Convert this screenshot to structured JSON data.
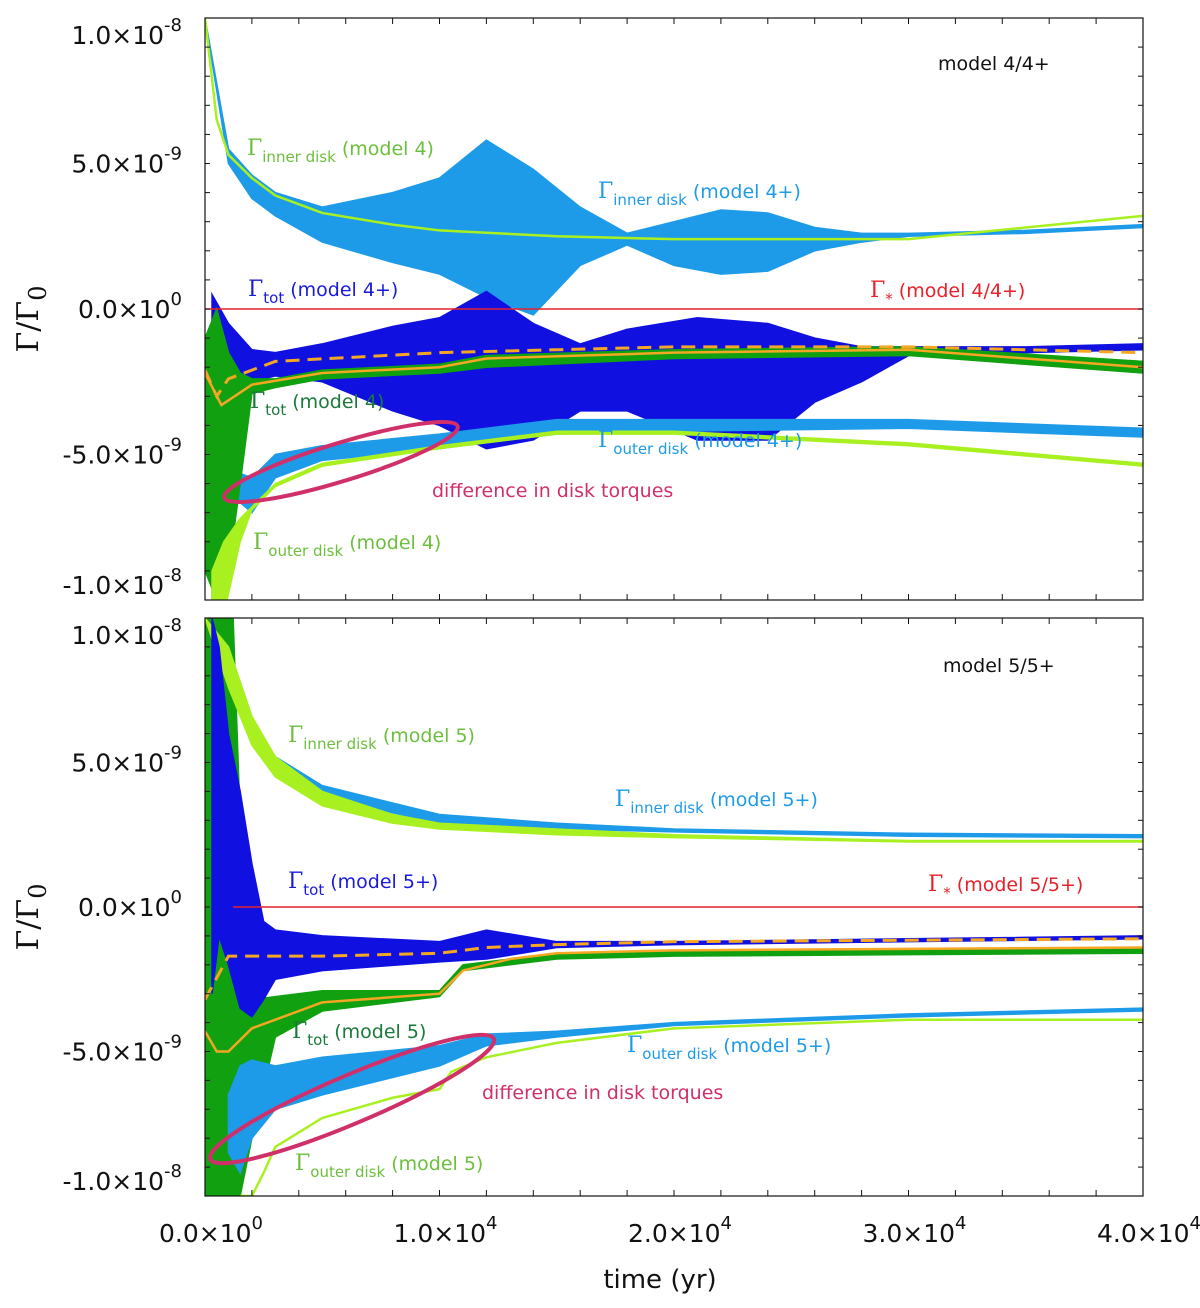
{
  "chart_data": [
    {
      "type": "line",
      "title": "model 4/4+",
      "xlabel": "time (yr)",
      "ylabel": {
        "main": "Γ/Γ",
        "sub": "0"
      },
      "xlim": [
        0,
        40000
      ],
      "ylim": [
        -1e-08,
        1e-08
      ],
      "y_scale_note": "values in units of 1e-9",
      "x_ticks": [
        {
          "m": "0.0×10",
          "e": "0",
          "v": 0
        },
        {
          "m": "1.0×10",
          "e": "4",
          "v": 10000
        },
        {
          "m": "2.0×10",
          "e": "4",
          "v": 20000
        },
        {
          "m": "3.0×10",
          "e": "4",
          "v": 30000
        },
        {
          "m": "4.0×10",
          "e": "4",
          "v": 40000
        }
      ],
      "y_ticks": [
        {
          "m": "1.0×10",
          "e": "-8",
          "v": 10
        },
        {
          "m": "5.0×10",
          "e": "-9",
          "v": 5
        },
        {
          "m": "0.0×10",
          "e": "0",
          "v": 0
        },
        {
          "m": "-5.0×10",
          "e": "-9",
          "v": -5
        },
        {
          "m": "-1.0×10",
          "e": "-8",
          "v": -10
        }
      ],
      "series": [
        {
          "name": "inner disk (model 4+)",
          "kind": "band",
          "color": "#1e9be8",
          "x": [
            0,
            1000,
            2000,
            3000,
            5000,
            8000,
            10000,
            12000,
            14000,
            16000,
            18000,
            20000,
            22000,
            24000,
            26000,
            28000,
            30000,
            35000,
            40000
          ],
          "upper": [
            10,
            5.5,
            4.6,
            4.0,
            3.5,
            4.0,
            4.5,
            5.8,
            4.8,
            3.5,
            2.6,
            3.0,
            3.4,
            3.3,
            2.8,
            2.6,
            2.6,
            2.7,
            2.9
          ],
          "lower": [
            10,
            5.0,
            3.8,
            3.2,
            2.3,
            1.6,
            1.2,
            0.4,
            -0.2,
            1.5,
            2.2,
            1.5,
            1.2,
            1.3,
            2.0,
            2.3,
            2.5,
            2.6,
            2.8
          ]
        },
        {
          "name": "tot (model 4+)",
          "kind": "band",
          "color": "#1010e0",
          "x": [
            300,
            1000,
            2000,
            3000,
            5000,
            8000,
            10000,
            12000,
            14000,
            16000,
            18000,
            21000,
            24000,
            26000,
            28000,
            30000,
            35000,
            40000
          ],
          "upper": [
            0.5,
            -0.5,
            -1.4,
            -1.5,
            -1.2,
            -0.6,
            -0.3,
            0.6,
            -0.5,
            -1.2,
            -0.7,
            -0.3,
            -0.5,
            -1.0,
            -1.3,
            -1.3,
            -1.3,
            -1.2
          ],
          "lower": [
            -3.0,
            -3.2,
            -2.5,
            -2.3,
            -2.5,
            -3.5,
            -4.0,
            -4.8,
            -4.5,
            -3.5,
            -3.5,
            -4.5,
            -4.5,
            -3.2,
            -2.5,
            -1.6,
            -1.5,
            -1.4
          ]
        },
        {
          "name": "outer disk (model 4+)",
          "kind": "band",
          "color": "#1e9be8",
          "x": [
            300,
            1000,
            2000,
            3000,
            5000,
            10000,
            15000,
            20000,
            30000,
            40000
          ],
          "upper": [
            -8,
            -5.5,
            -5.8,
            -5.0,
            -4.7,
            -4.3,
            -3.8,
            -3.8,
            -3.8,
            -4.1
          ],
          "lower": [
            -10,
            -6.3,
            -7.0,
            -5.8,
            -5.2,
            -4.8,
            -4.3,
            -4.2,
            -4.1,
            -4.4
          ]
        },
        {
          "name": "tot (model 4)",
          "kind": "band",
          "color": "#10a010",
          "x": [
            0,
            500,
            1000,
            1500,
            2000,
            3000,
            5000,
            10000,
            12000,
            20000,
            30000,
            40000
          ],
          "upper": [
            -1,
            0,
            -1.5,
            -2.2,
            -2.4,
            -2.4,
            -2.1,
            -1.9,
            -1.6,
            -1.4,
            -1.3,
            -1.8
          ],
          "lower": [
            -9,
            -10,
            -9,
            -6,
            -2.9,
            -2.7,
            -2.4,
            -2.2,
            -2.0,
            -1.7,
            -1.6,
            -2.2
          ]
        },
        {
          "name": "inner disk (model 4)",
          "kind": "line",
          "color": "#a8f020",
          "x": [
            0,
            500,
            1000,
            2000,
            3000,
            5000,
            8000,
            10000,
            15000,
            20000,
            25000,
            30000,
            35000,
            40000
          ],
          "y": [
            10,
            6.5,
            5.3,
            4.5,
            3.9,
            3.3,
            2.9,
            2.7,
            2.5,
            2.4,
            2.4,
            2.4,
            2.8,
            3.2
          ]
        },
        {
          "name": "outer disk (model 4)",
          "kind": "band",
          "color": "#a8f020",
          "x": [
            300,
            800,
            1500,
            2000,
            3000,
            5000,
            10000,
            15000,
            20000,
            30000,
            40000
          ],
          "upper": [
            -9,
            -8,
            -7.2,
            -6.8,
            -6.0,
            -5.3,
            -4.7,
            -4.2,
            -4.2,
            -4.6,
            -5.3
          ],
          "lower": [
            -10.5,
            -10.5,
            -8,
            -6.9,
            -6.1,
            -5.4,
            -4.8,
            -4.3,
            -4.3,
            -4.7,
            -5.4
          ]
        },
        {
          "name": "tot (model 4+) mean",
          "kind": "dashed",
          "color": "#f5a623",
          "x": [
            0,
            500,
            1000,
            3000,
            10000,
            20000,
            30000,
            40000
          ],
          "y": [
            -2.1,
            -3.0,
            -2.4,
            -1.8,
            -1.5,
            -1.3,
            -1.3,
            -1.5
          ]
        },
        {
          "name": "tot (model 4) mean",
          "kind": "line",
          "color": "#f5a623",
          "x": [
            0,
            700,
            2000,
            5000,
            10000,
            12000,
            20000,
            30000,
            40000
          ],
          "y": [
            -2.2,
            -3.3,
            -2.6,
            -2.2,
            -2.0,
            -1.7,
            -1.5,
            -1.4,
            -2.0
          ]
        },
        {
          "name": "Γ* (model 4/4+)",
          "kind": "line",
          "color": "#e8202a",
          "x": [
            0,
            40000
          ],
          "y": [
            0,
            0
          ]
        }
      ],
      "annotations": [
        {
          "id": "lbl-inner-4",
          "symbol": "Γ",
          "sub": "inner disk",
          "text": " (model 4)",
          "color": "#6cbf3c"
        },
        {
          "id": "lbl-inner-4p",
          "symbol": "Γ",
          "sub": "inner disk",
          "text": " (model 4+)",
          "color": "#1e9be8"
        },
        {
          "id": "lbl-tot-4p",
          "symbol": "Γ",
          "sub": "tot",
          "text": " (model 4+)",
          "color": "#1a1adc"
        },
        {
          "id": "lbl-star",
          "symbol": "Γ",
          "sub": "*",
          "text": " (model 4/4+)",
          "color": "#e8202a"
        },
        {
          "id": "lbl-tot-4",
          "symbol": "Γ",
          "sub": "tot",
          "text": " (model 4)",
          "color": "#1a7a3a"
        },
        {
          "id": "lbl-outer-4p",
          "symbol": "Γ",
          "sub": "outer disk",
          "text": " (model 4+)",
          "color": "#1e9be8"
        },
        {
          "id": "lbl-diff",
          "symbol": "",
          "sub": "",
          "text": "difference in disk torques",
          "color": "#d0306a"
        },
        {
          "id": "lbl-outer-4",
          "symbol": "Γ",
          "sub": "outer disk",
          "text": " (model 4)",
          "color": "#6cbf3c"
        },
        {
          "id": "lbl-title",
          "symbol": "",
          "sub": "",
          "text": "model 4/4+",
          "color": "#111111"
        }
      ]
    },
    {
      "type": "line",
      "title": "model 5/5+",
      "xlabel": "time (yr)",
      "ylabel": {
        "main": "Γ/Γ",
        "sub": "0"
      },
      "xlim": [
        0,
        40000
      ],
      "ylim": [
        -1e-08,
        1e-08
      ],
      "y_scale_note": "values in units of 1e-9",
      "x_ticks": [
        {
          "m": "0.0×10",
          "e": "0",
          "v": 0
        },
        {
          "m": "1.0×10",
          "e": "4",
          "v": 10000
        },
        {
          "m": "2.0×10",
          "e": "4",
          "v": 20000
        },
        {
          "m": "3.0×10",
          "e": "4",
          "v": 30000
        },
        {
          "m": "4.0×10",
          "e": "4",
          "v": 40000
        }
      ],
      "y_ticks": [
        {
          "m": "1.0×10",
          "e": "-8",
          "v": 10
        },
        {
          "m": "5.0×10",
          "e": "-9",
          "v": 5
        },
        {
          "m": "0.0×10",
          "e": "0",
          "v": 0
        },
        {
          "m": "-5.0×10",
          "e": "-9",
          "v": -5
        },
        {
          "m": "-1.0×10",
          "e": "-8",
          "v": -10
        }
      ],
      "series": [
        {
          "name": "tot (model 5)",
          "kind": "band",
          "color": "#10a010",
          "x": [
            0,
            300,
            800,
            1200,
            1500,
            2000,
            3000,
            5000,
            10000,
            11000,
            15000,
            20000,
            40000
          ],
          "upper": [
            10,
            10,
            10,
            10,
            3,
            -3.2,
            -3.1,
            -2.9,
            -2.9,
            -2.0,
            -1.6,
            -1.5,
            -1.4
          ],
          "lower": [
            -10,
            -10,
            -10,
            -10,
            -10,
            -8,
            -4.5,
            -3.6,
            -3.1,
            -2.2,
            -1.8,
            -1.7,
            -1.6
          ]
        },
        {
          "name": "inner disk (model 5+)",
          "kind": "band",
          "color": "#1e9be8",
          "x": [
            0,
            1000,
            2000,
            3000,
            5000,
            10000,
            15000,
            20000,
            30000,
            40000
          ],
          "upper": [
            10,
            8.3,
            6.4,
            5.2,
            4.2,
            3.2,
            2.9,
            2.7,
            2.55,
            2.5
          ],
          "lower": [
            10,
            7.8,
            6.0,
            4.9,
            3.8,
            2.9,
            2.7,
            2.6,
            2.45,
            2.4
          ]
        },
        {
          "name": "inner disk (model 5)",
          "kind": "band",
          "color": "#a8f020",
          "x": [
            0,
            1000,
            2000,
            3000,
            5000,
            8000,
            10000,
            15000,
            20000,
            30000,
            40000
          ],
          "upper": [
            10,
            9,
            6.6,
            5.2,
            4.0,
            3.2,
            2.9,
            2.7,
            2.5,
            2.3,
            2.3
          ],
          "lower": [
            10,
            7.6,
            5.6,
            4.5,
            3.5,
            2.9,
            2.7,
            2.5,
            2.4,
            2.25,
            2.25
          ]
        },
        {
          "name": "tot (model 5+)",
          "kind": "band",
          "color": "#1010e0",
          "x": [
            300,
            600,
            1000,
            1500,
            2000,
            2500,
            3000,
            5000,
            10000,
            12000,
            15000,
            20000,
            30000,
            40000
          ],
          "upper": [
            10,
            9,
            6,
            4,
            1.5,
            -0.5,
            -0.8,
            -1.0,
            -1.2,
            -0.8,
            -1.2,
            -1.2,
            -1.1,
            -1.0
          ],
          "lower": [
            -3,
            -1,
            -2,
            -3.5,
            -3.8,
            -3.2,
            -2.5,
            -2.2,
            -1.9,
            -1.8,
            -1.4,
            -1.3,
            -1.2,
            -1.1
          ]
        },
        {
          "name": "outer disk (model 5+)",
          "kind": "band",
          "color": "#1e9be8",
          "x": [
            1000,
            1500,
            2000,
            3000,
            5000,
            10000,
            12000,
            15000,
            20000,
            30000,
            40000
          ],
          "upper": [
            -6.5,
            -5.5,
            -5.3,
            -5.5,
            -5.2,
            -4.8,
            -4.4,
            -4.3,
            -4.0,
            -3.7,
            -3.5
          ],
          "lower": [
            -8.5,
            -9.2,
            -8,
            -7.0,
            -6.5,
            -5.5,
            -4.8,
            -4.5,
            -4.1,
            -3.8,
            -3.6
          ]
        },
        {
          "name": "outer disk (model 5)",
          "kind": "line",
          "color": "#a8f020",
          "x": [
            1500,
            2000,
            2500,
            3000,
            5000,
            8000,
            10000,
            10500,
            12000,
            15000,
            20000,
            30000,
            40000
          ],
          "y": [
            -10,
            -10,
            -9.2,
            -8.3,
            -7.3,
            -6.6,
            -6.3,
            -5.7,
            -5.2,
            -4.7,
            -4.2,
            -3.9,
            -3.9
          ]
        },
        {
          "name": "tot (model 5+) mean",
          "kind": "dashed",
          "color": "#f5a623",
          "x": [
            0,
            1000,
            1500,
            5000,
            10000,
            12000,
            15000,
            20000,
            30000,
            40000
          ],
          "y": [
            -3.2,
            -1.7,
            -1.7,
            -1.7,
            -1.6,
            -1.4,
            -1.3,
            -1.2,
            -1.15,
            -1.1
          ]
        },
        {
          "name": "tot (model 5) mean",
          "kind": "line",
          "color": "#f5a623",
          "x": [
            0,
            500,
            1000,
            2000,
            5000,
            10000,
            11000,
            13000,
            15000,
            20000,
            30000,
            40000
          ],
          "y": [
            -4.3,
            -5.0,
            -5.0,
            -4.2,
            -3.3,
            -3.0,
            -2.2,
            -1.8,
            -1.6,
            -1.5,
            -1.45,
            -1.4
          ]
        },
        {
          "name": "Γ* (model 5/5+)",
          "kind": "line",
          "color": "#e8202a",
          "x": [
            1200,
            40000
          ],
          "y": [
            0,
            0
          ]
        }
      ],
      "annotations": [
        {
          "id": "lbl-title",
          "symbol": "",
          "sub": "",
          "text": "model 5/5+",
          "color": "#111111"
        },
        {
          "id": "lbl-inner-5",
          "symbol": "Γ",
          "sub": "inner disk",
          "text": " (model 5)",
          "color": "#6cbf3c"
        },
        {
          "id": "lbl-inner-5p",
          "symbol": "Γ",
          "sub": "inner disk",
          "text": " (model 5+)",
          "color": "#1e9be8"
        },
        {
          "id": "lbl-tot-5p",
          "symbol": "Γ",
          "sub": "tot",
          "text": " (model 5+)",
          "color": "#1a1adc"
        },
        {
          "id": "lbl-star",
          "symbol": "Γ",
          "sub": "*",
          "text": " (model 5/5+)",
          "color": "#e8202a"
        },
        {
          "id": "lbl-tot-5",
          "symbol": "Γ",
          "sub": "tot",
          "text": " (model 5)",
          "color": "#1a7a3a"
        },
        {
          "id": "lbl-outer-5p",
          "symbol": "Γ",
          "sub": "outer disk",
          "text": " (model 5+)",
          "color": "#1e9be8"
        },
        {
          "id": "lbl-diff",
          "symbol": "",
          "sub": "",
          "text": "difference in disk torques",
          "color": "#d0306a"
        },
        {
          "id": "lbl-outer-5",
          "symbol": "Γ",
          "sub": "outer disk",
          "text": " (model 5)",
          "color": "#6cbf3c"
        }
      ]
    }
  ]
}
